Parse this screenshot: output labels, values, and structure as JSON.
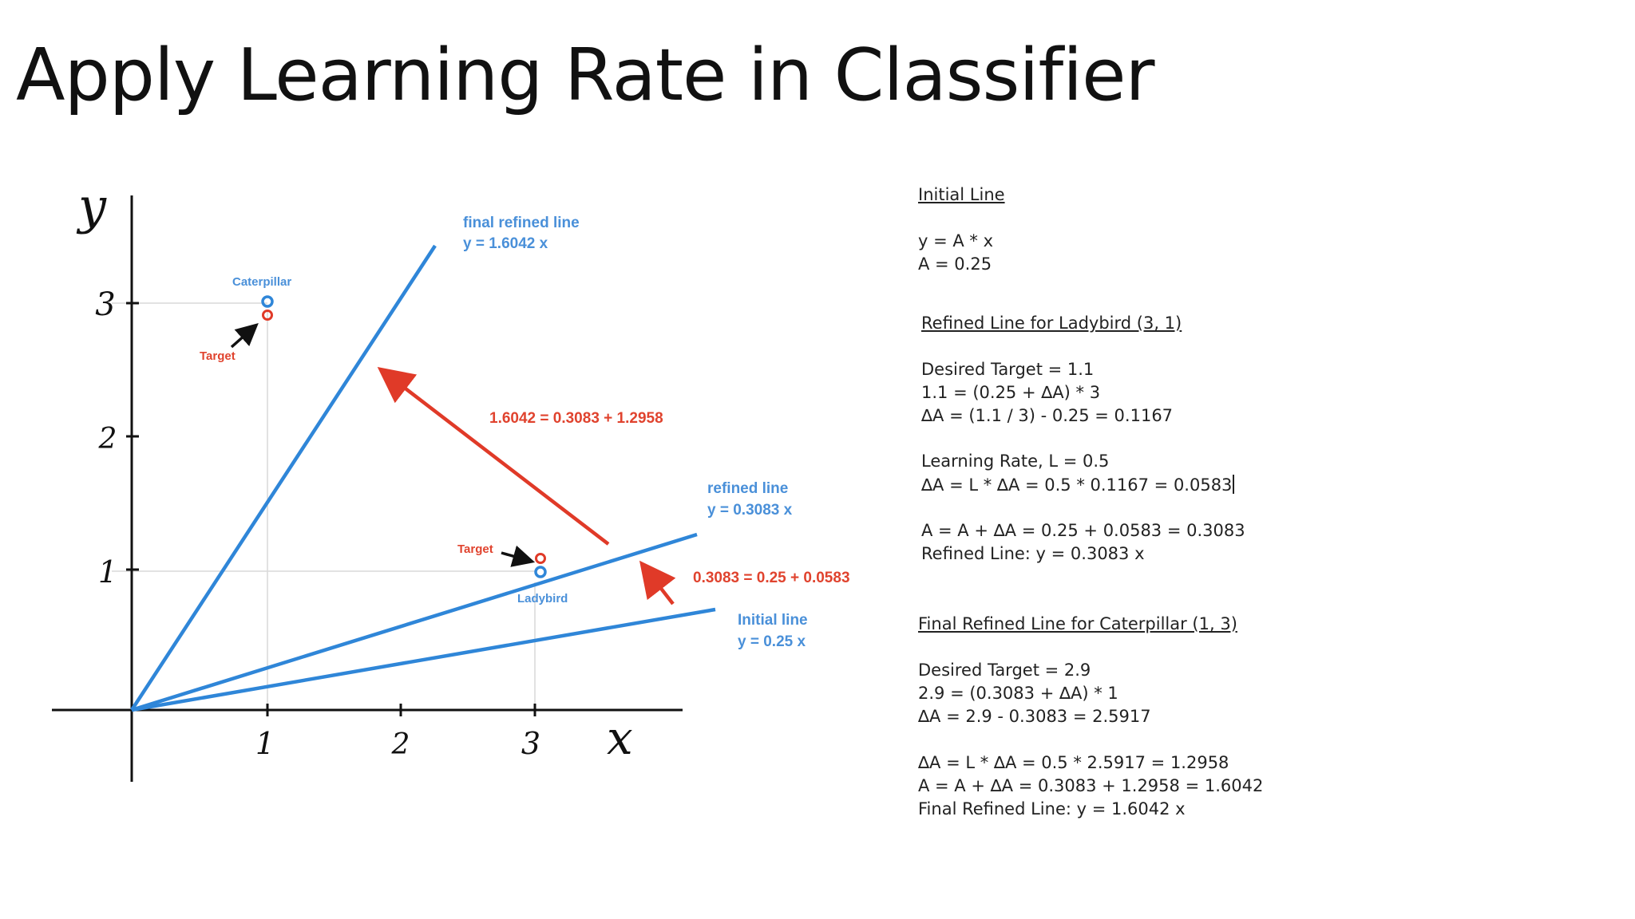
{
  "slide": {
    "title": "Apply Learning Rate in Classifier"
  },
  "figure": {
    "axis_labels": {
      "y": "y",
      "x": "x"
    },
    "y_ticks": [
      "3",
      "2",
      "1"
    ],
    "x_ticks": [
      "1",
      "2",
      "3"
    ],
    "lines": {
      "final": {
        "name": "final refined line",
        "equation": "y = 1.6042 x",
        "slope": 1.6042
      },
      "refined": {
        "name": "refined line",
        "equation": "y = 0.3083 x",
        "slope": 0.3083
      },
      "initial": {
        "name": "Initial line",
        "equation": "y = 0.25 x",
        "slope": 0.25
      }
    },
    "points": {
      "caterpillar": {
        "label": "Caterpillar",
        "x": 1,
        "y": 3
      },
      "caterpillar_target": {
        "label": "Target",
        "x": 1,
        "y": 2.9
      },
      "ladybird": {
        "label": "Ladybird",
        "x": 3,
        "y": 1
      },
      "ladybird_target": {
        "label": "Target",
        "x": 3,
        "y": 1.1
      }
    },
    "annotations": {
      "big_arrow": "1.6042 = 0.3083 + 1.2958",
      "small_arrow": "0.3083 = 0.25 + 0.0583"
    },
    "colors": {
      "line": "#2f86d8",
      "label_blue": "#4a90d9",
      "arrow": "#e03a28",
      "annotation": "#e0432e"
    }
  },
  "notes": {
    "initial_heading": "Initial Line",
    "initial_eq": "y = A * x",
    "initial_a": "A = 0.25",
    "refined_heading": "Refined Line for Ladybird (3, 1)",
    "ladybird_desired": "Desired Target = 1.1",
    "ladybird_eq1": "1.1 = (0.25 + ∆A) * 3",
    "ladybird_eq2": "∆A = (1.1 / 3) - 0.25 = 0.1167",
    "learning_rate": "Learning Rate, L = 0.5",
    "ladybird_eq3": "∆A = L * ∆A = 0.5 * 0.1167 = 0.0583",
    "ladybird_eq4": "A = A + ∆A = 0.25 + 0.0583 = 0.3083",
    "refined_line": "Refined Line: y = 0.3083 x",
    "final_heading": "Final Refined Line for Caterpillar (1, 3)",
    "cat_desired": "Desired Target = 2.9",
    "cat_eq1": "2.9 = (0.3083 + ∆A) * 1",
    "cat_eq2": "∆A = 2.9 - 0.3083 = 2.5917",
    "cat_eq3": "∆A = L * ∆A = 0.5 * 2.5917 = 1.2958",
    "cat_eq4": "A = A + ∆A = 0.3083 + 1.2958 = 1.6042",
    "final_line": "Final Refined Line: y = 1.6042 x"
  }
}
